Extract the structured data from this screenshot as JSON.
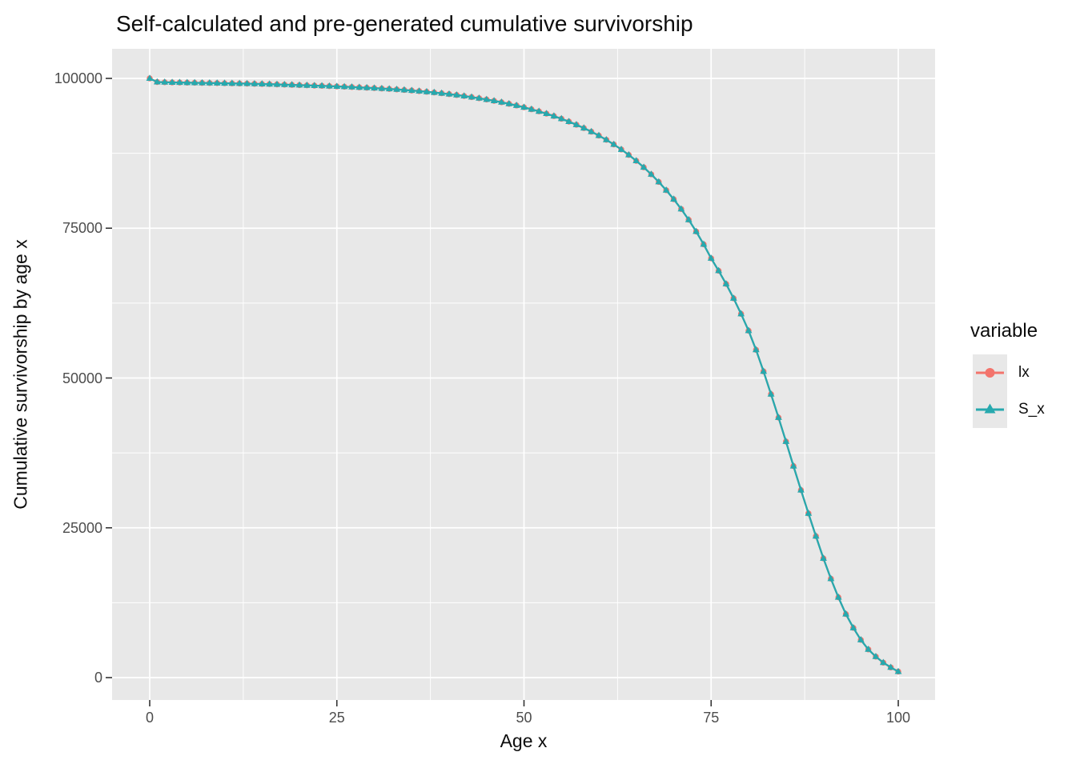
{
  "chart": {
    "title": "Self-calculated and pre-generated cumulative survivorship",
    "xlabel": "Age x",
    "ylabel": "Cumulative survivorship by age x",
    "legend_title": "variable",
    "panel_bg": "#e8e8e8",
    "grid_color": "#ffffff",
    "tick_color": "#333333",
    "tick_label_color": "#4d4d4d",
    "legend_key_bg": "#e8e8e8"
  },
  "chart_data": {
    "type": "line",
    "title": "Self-calculated and pre-generated cumulative survivorship",
    "xlabel": "Age x",
    "ylabel": "Cumulative survivorship by age x",
    "xlim": [
      0,
      100
    ],
    "ylim": [
      0,
      100000
    ],
    "x_ticks": [
      0,
      25,
      50,
      75,
      100
    ],
    "y_ticks": [
      0,
      25000,
      50000,
      75000,
      100000
    ],
    "x_minor_ticks": [
      12.5,
      37.5,
      62.5,
      87.5
    ],
    "y_minor_ticks": [
      12500,
      37500,
      62500,
      87500
    ],
    "grid": "on",
    "legend_position": "right",
    "legend_title": "variable",
    "x": [
      0,
      1,
      2,
      3,
      4,
      5,
      6,
      7,
      8,
      9,
      10,
      11,
      12,
      13,
      14,
      15,
      16,
      17,
      18,
      19,
      20,
      21,
      22,
      23,
      24,
      25,
      26,
      27,
      28,
      29,
      30,
      31,
      32,
      33,
      34,
      35,
      36,
      37,
      38,
      39,
      40,
      41,
      42,
      43,
      44,
      45,
      46,
      47,
      48,
      49,
      50,
      51,
      52,
      53,
      54,
      55,
      56,
      57,
      58,
      59,
      60,
      61,
      62,
      63,
      64,
      65,
      66,
      67,
      68,
      69,
      70,
      71,
      72,
      73,
      74,
      75,
      76,
      77,
      78,
      79,
      80,
      81,
      82,
      83,
      84,
      85,
      86,
      87,
      88,
      89,
      90,
      91,
      92,
      93,
      94,
      95,
      96,
      97,
      98,
      99,
      100
    ],
    "series": [
      {
        "name": "lx",
        "color": "#f3746c",
        "marker": "circle",
        "values": [
          100000,
          99400,
          99360,
          99330,
          99310,
          99290,
          99270,
          99250,
          99230,
          99210,
          99190,
          99170,
          99150,
          99130,
          99100,
          99070,
          99040,
          99000,
          98960,
          98920,
          98880,
          98840,
          98800,
          98760,
          98710,
          98660,
          98610,
          98560,
          98500,
          98440,
          98380,
          98310,
          98240,
          98160,
          98070,
          97980,
          97880,
          97770,
          97650,
          97520,
          97380,
          97230,
          97060,
          96880,
          96690,
          96480,
          96260,
          96020,
          95760,
          95480,
          95180,
          94850,
          94500,
          94120,
          93710,
          93270,
          92790,
          92270,
          91710,
          91110,
          90460,
          89750,
          88980,
          88140,
          87230,
          86240,
          85160,
          83990,
          82720,
          81340,
          79840,
          78200,
          76410,
          74450,
          72310,
          69970,
          67900,
          65700,
          63300,
          60700,
          57900,
          54700,
          51100,
          47300,
          43400,
          39400,
          35300,
          31300,
          27400,
          23600,
          19900,
          16500,
          13400,
          10600,
          8300,
          6300,
          4700,
          3500,
          2500,
          1700,
          1000
        ]
      },
      {
        "name": "S_x",
        "color": "#27a9ae",
        "marker": "triangle",
        "values": [
          100000,
          99400,
          99360,
          99330,
          99310,
          99290,
          99270,
          99250,
          99230,
          99210,
          99190,
          99170,
          99150,
          99130,
          99100,
          99070,
          99040,
          99000,
          98960,
          98920,
          98880,
          98840,
          98800,
          98760,
          98710,
          98660,
          98610,
          98560,
          98500,
          98440,
          98380,
          98310,
          98240,
          98160,
          98070,
          97980,
          97880,
          97770,
          97650,
          97520,
          97380,
          97230,
          97060,
          96880,
          96690,
          96480,
          96260,
          96020,
          95760,
          95480,
          95180,
          94850,
          94500,
          94120,
          93710,
          93270,
          92790,
          92270,
          91710,
          91110,
          90460,
          89750,
          88980,
          88140,
          87230,
          86240,
          85160,
          83990,
          82720,
          81340,
          79840,
          78200,
          76410,
          74450,
          72310,
          69970,
          67900,
          65700,
          63300,
          60700,
          57900,
          54700,
          51100,
          47300,
          43400,
          39400,
          35300,
          31300,
          27400,
          23600,
          19900,
          16500,
          13400,
          10600,
          8300,
          6300,
          4700,
          3500,
          2500,
          1700,
          1000
        ]
      }
    ]
  }
}
